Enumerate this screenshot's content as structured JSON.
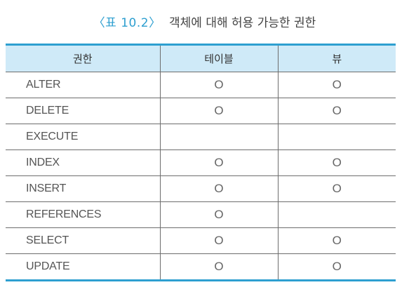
{
  "caption": {
    "label": "〈표 10.2〉",
    "title": "객체에 대해 허용 가능한 권한"
  },
  "table": {
    "headers": [
      "권한",
      "테이블",
      "뷰"
    ],
    "rows": [
      {
        "privilege": "ALTER",
        "table": "O",
        "view": "O"
      },
      {
        "privilege": "DELETE",
        "table": "O",
        "view": "O"
      },
      {
        "privilege": "EXECUTE",
        "table": "",
        "view": ""
      },
      {
        "privilege": "INDEX",
        "table": "O",
        "view": "O"
      },
      {
        "privilege": "INSERT",
        "table": "O",
        "view": "O"
      },
      {
        "privilege": "REFERENCES",
        "table": "O",
        "view": ""
      },
      {
        "privilege": "SELECT",
        "table": "O",
        "view": "O"
      },
      {
        "privilege": "UPDATE",
        "table": "O",
        "view": "O"
      }
    ]
  },
  "colors": {
    "accent": "#2e9fd0",
    "header_bg": "#cfeaf8",
    "rule": "#6d6d6d"
  }
}
